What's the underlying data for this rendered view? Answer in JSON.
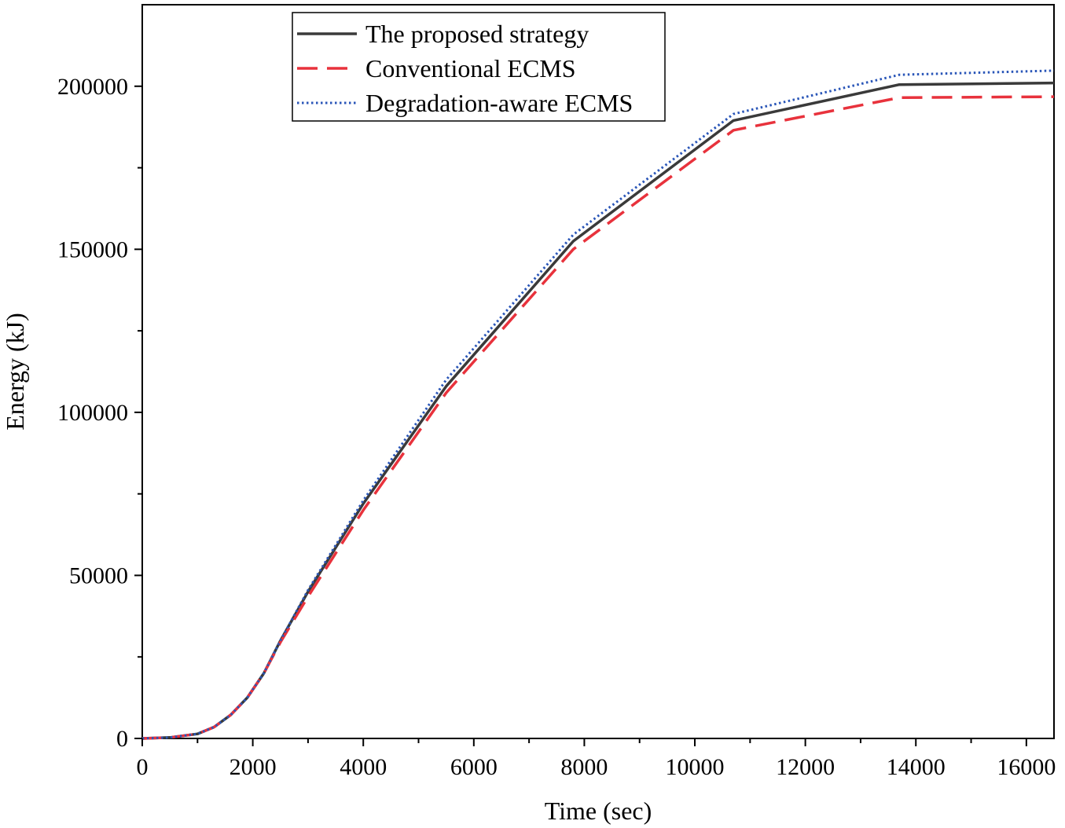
{
  "chart_data": {
    "type": "line",
    "title": "",
    "xlabel": "Time (sec)",
    "ylabel": "Energy (kJ)",
    "xlim": [
      0,
      16500
    ],
    "ylim": [
      0,
      225000
    ],
    "xticks": [
      0,
      2000,
      4000,
      6000,
      8000,
      10000,
      12000,
      14000,
      16000
    ],
    "yticks": [
      0,
      50000,
      100000,
      150000,
      200000
    ],
    "xtick_labels": [
      "0",
      "2000",
      "4000",
      "6000",
      "8000",
      "10000",
      "12000",
      "14000",
      "16000"
    ],
    "ytick_labels": [
      "0",
      "50000",
      "100000",
      "150000",
      "200000"
    ],
    "grid": false,
    "legend_position": "top-center",
    "series": [
      {
        "name": "The proposed strategy",
        "color": "#3a3a3a",
        "style": "solid",
        "x": [
          0,
          500,
          1000,
          1300,
          1600,
          1900,
          2200,
          2500,
          3000,
          4000,
          5500,
          7800,
          10700,
          13700,
          16500
        ],
        "y": [
          0,
          300,
          1400,
          3500,
          7200,
          12500,
          20000,
          30000,
          45000,
          72000,
          108000,
          152500,
          189500,
          200500,
          201000
        ]
      },
      {
        "name": "Conventional ECMS",
        "color": "#e8323c",
        "style": "dashed",
        "x": [
          0,
          500,
          1000,
          1300,
          1600,
          1900,
          2200,
          2500,
          3000,
          4000,
          5500,
          7800,
          10700,
          13700,
          16500
        ],
        "y": [
          0,
          300,
          1400,
          3500,
          7200,
          12500,
          20000,
          29500,
          43500,
          70000,
          106000,
          150000,
          186500,
          196500,
          196800
        ]
      },
      {
        "name": "Degradation-aware ECMS",
        "color": "#2a56b8",
        "style": "dotted",
        "x": [
          0,
          500,
          1000,
          1300,
          1600,
          1900,
          2200,
          2500,
          3000,
          4000,
          5500,
          7800,
          10700,
          13700,
          16500
        ],
        "y": [
          0,
          300,
          1400,
          3500,
          7200,
          12500,
          20000,
          30000,
          45500,
          73000,
          110000,
          154500,
          191500,
          203500,
          204800
        ]
      }
    ]
  }
}
